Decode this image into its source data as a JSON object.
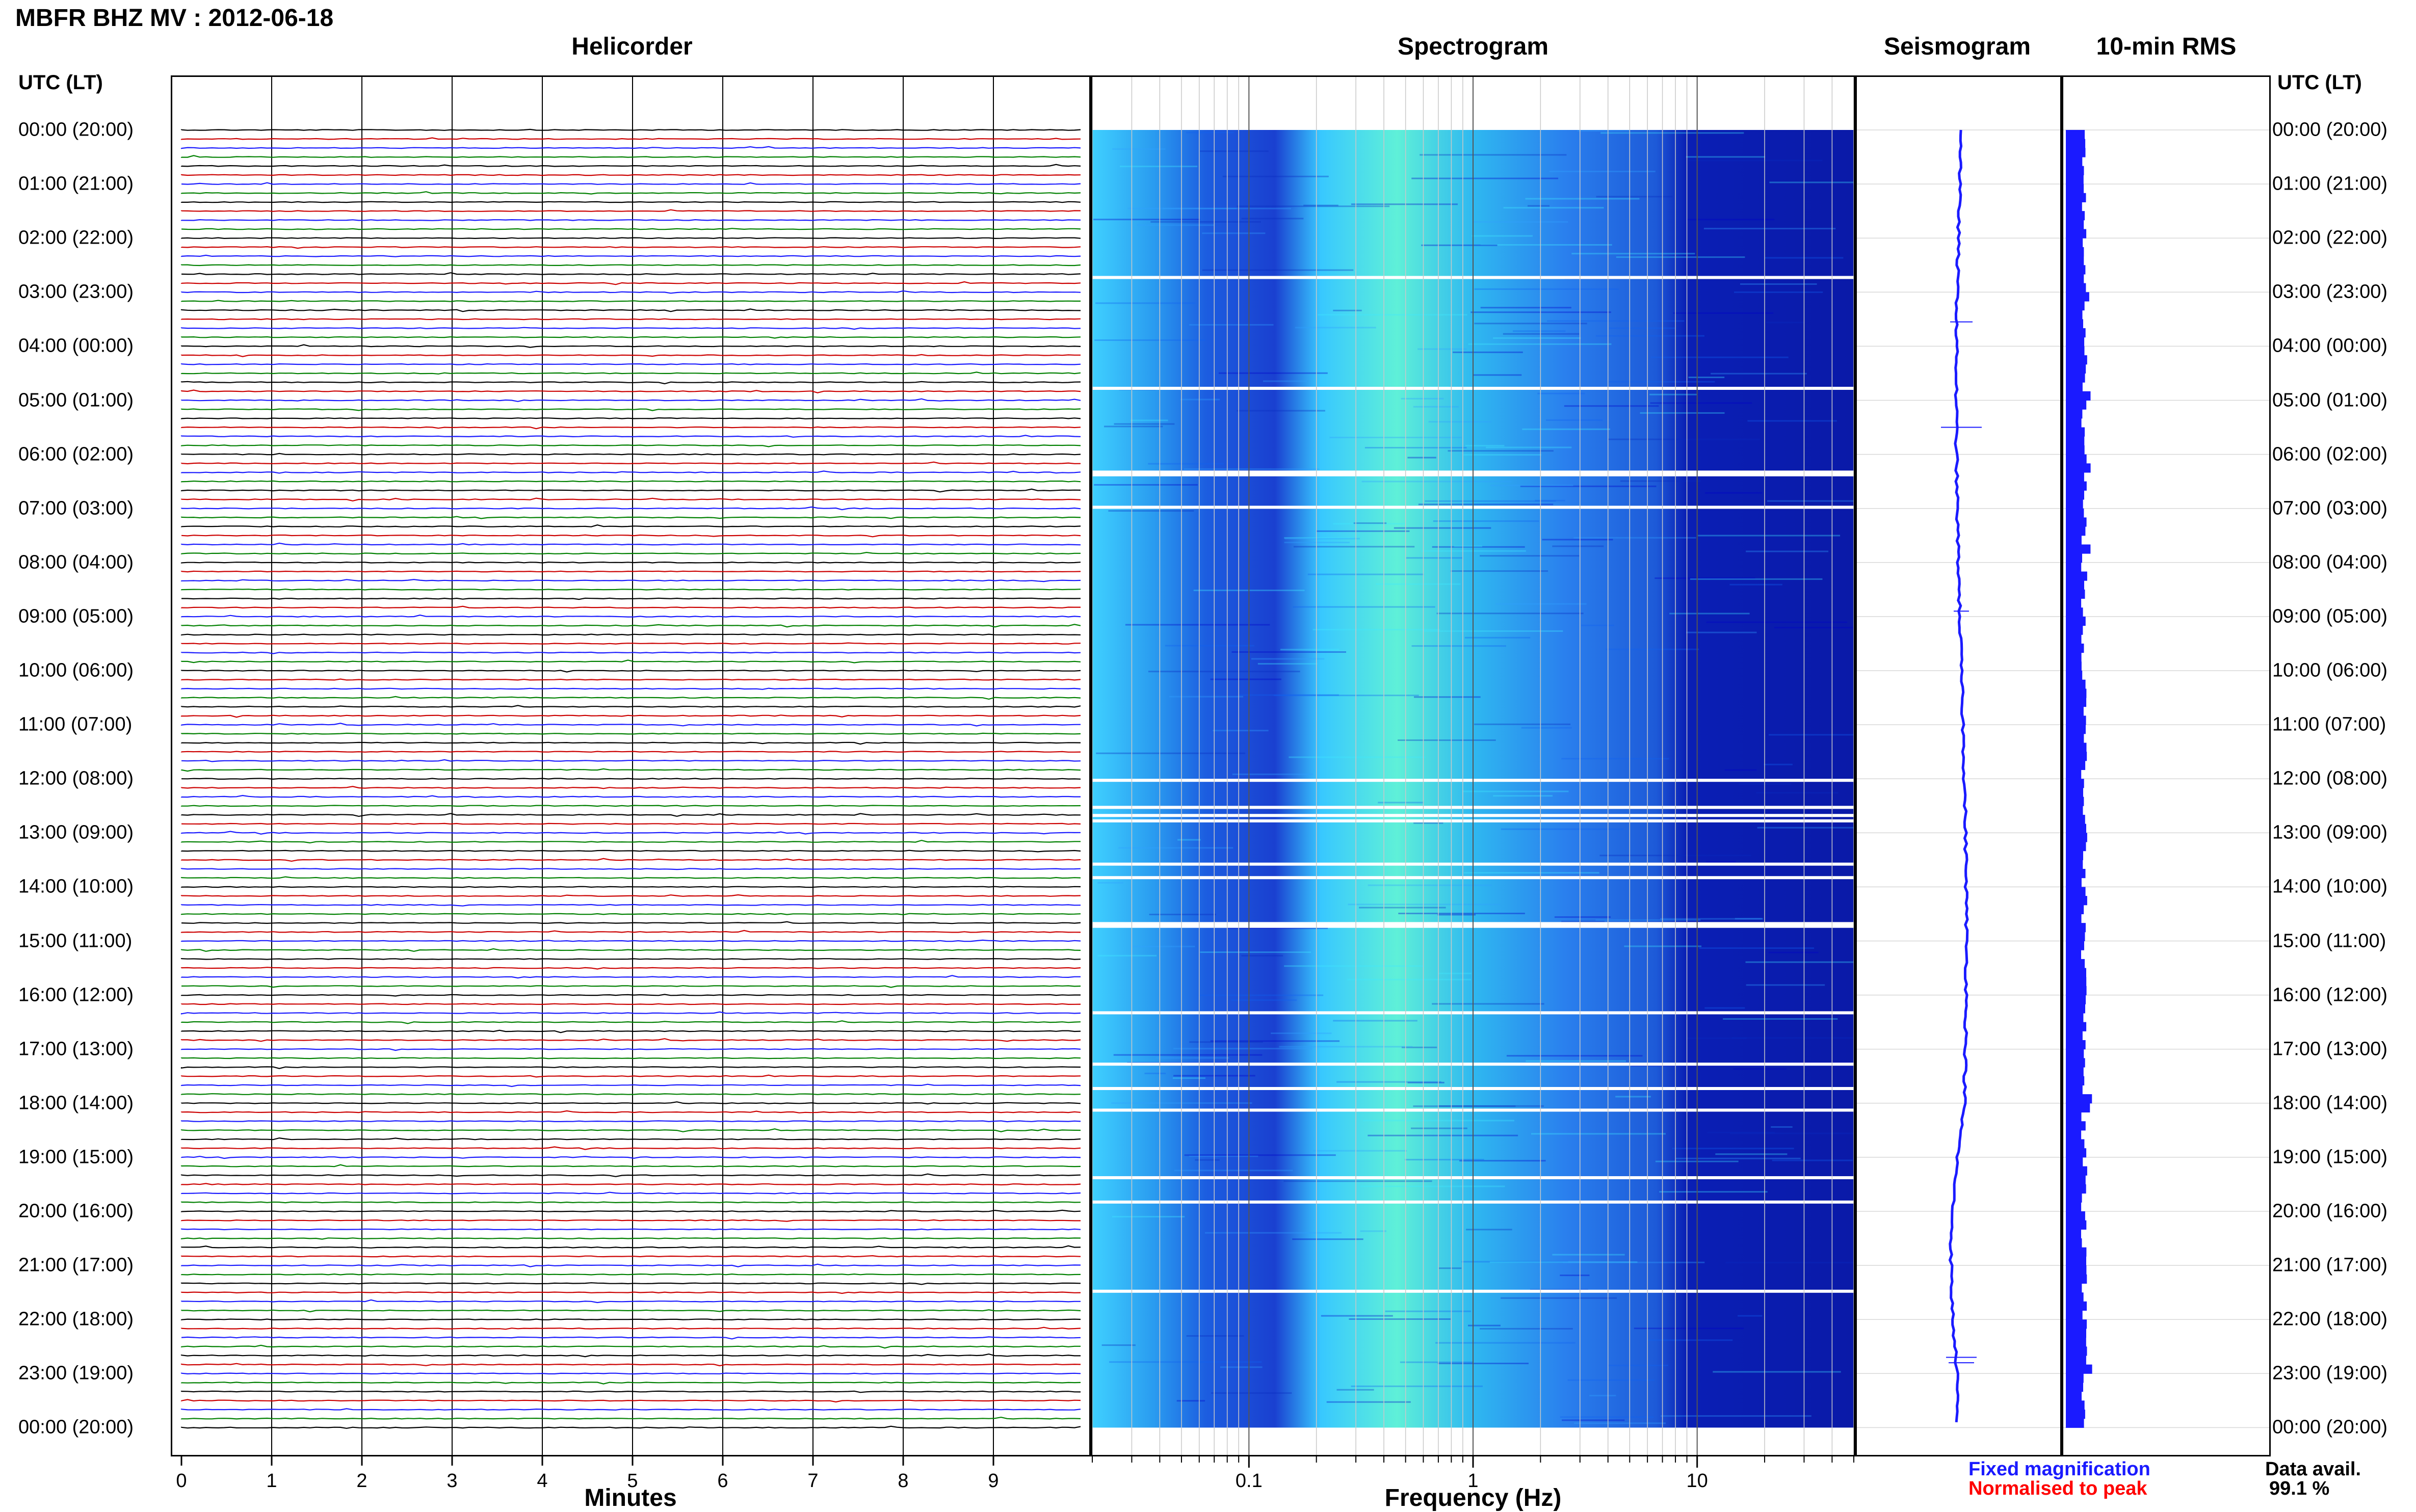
{
  "header": {
    "title": "MBFR BHZ MV : 2012-06-18",
    "tz_left": "UTC (LT)",
    "tz_right": "UTC (LT)"
  },
  "panels": {
    "helicorder": "Helicorder",
    "spectrogram": "Spectrogram",
    "seismogram": "Seismogram",
    "rms": "10-min RMS"
  },
  "time_labels": [
    "00:00 (20:00)",
    "01:00 (21:00)",
    "02:00 (22:00)",
    "03:00 (23:00)",
    "04:00 (00:00)",
    "05:00 (01:00)",
    "06:00 (02:00)",
    "07:00 (03:00)",
    "08:00 (04:00)",
    "09:00 (05:00)",
    "10:00 (06:00)",
    "11:00 (07:00)",
    "12:00 (08:00)",
    "13:00 (09:00)",
    "14:00 (10:00)",
    "15:00 (11:00)",
    "16:00 (12:00)",
    "17:00 (13:00)",
    "18:00 (14:00)",
    "19:00 (15:00)",
    "20:00 (16:00)",
    "21:00 (17:00)",
    "22:00 (18:00)",
    "23:00 (19:00)",
    "00:00 (20:00)"
  ],
  "axes": {
    "minutes_label": "Minutes",
    "minutes_ticks": [
      "0",
      "1",
      "2",
      "3",
      "4",
      "5",
      "6",
      "7",
      "8",
      "9"
    ],
    "frequency_label": "Frequency (Hz)",
    "frequency_ticks": [
      "0.1",
      "1",
      "10"
    ]
  },
  "legend": {
    "fixed": "Fixed magnification",
    "normalised": "Normalised to peak",
    "fixed_color": "#1a1aff",
    "normalised_color": "#ff0000"
  },
  "data_avail": {
    "label": "Data avail.",
    "value": "99.1 %"
  },
  "chart_data": {
    "type": "heatmap",
    "title": "MBFR BHZ MV : 2012-06-18",
    "ylabel": "UTC (LT)",
    "helicorder": {
      "xlabel": "Minutes",
      "xlim": [
        0,
        10
      ],
      "line_colors": [
        "#000000",
        "#cc0000",
        "#1a1aff",
        "#008000"
      ],
      "lines_per_hour": 6
    },
    "spectrogram": {
      "xlabel": "Frequency (Hz)",
      "xscale": "log",
      "xlim": [
        0.02,
        50
      ],
      "colormap": [
        "#00008b",
        "#0000ff",
        "#0080ff",
        "#00ffff",
        "#80ff80"
      ]
    },
    "seismogram": {
      "color": "#1a1aff"
    },
    "rms": {
      "color": "#1a1aff"
    },
    "data_availability_percent": 99.1
  }
}
